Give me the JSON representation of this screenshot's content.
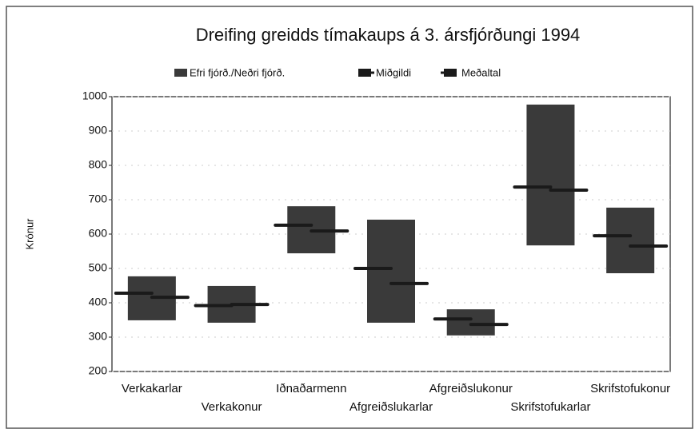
{
  "chart_data": {
    "type": "floating_bar",
    "title": "Dreifing greidds tímakaups á 3. ársfjórðungi 1994",
    "y_label": "Krónur",
    "categories": [
      "Verkakarlar",
      "Verkakonur",
      "Iðnaðarmenn",
      "Afgreiðslukarlar",
      "Afgreiðslukonur",
      "Skrifstofukarlar",
      "Skrifstofukonur"
    ],
    "range_series": {
      "name": "Efri fjórð./Neðri fjórð.",
      "color": "#3a3a3a",
      "high": [
        477,
        449,
        681,
        642,
        381,
        977,
        677
      ],
      "low": [
        349,
        342,
        544,
        342,
        305,
        567,
        486
      ]
    },
    "series": [
      {
        "name": "Miðgildi",
        "color": "#1a1a1a",
        "side": "right",
        "values": [
          416,
          395,
          609,
          456,
          337,
          728,
          565
        ]
      },
      {
        "name": "Meðaltal",
        "color": "#1a1a1a",
        "side": "left",
        "values": [
          428,
          392,
          626,
          500,
          353,
          737,
          595
        ]
      }
    ],
    "ylim": [
      200,
      1000
    ],
    "yticks": [
      200,
      300,
      400,
      500,
      600,
      700,
      800,
      900,
      1000
    ],
    "grid": true
  }
}
